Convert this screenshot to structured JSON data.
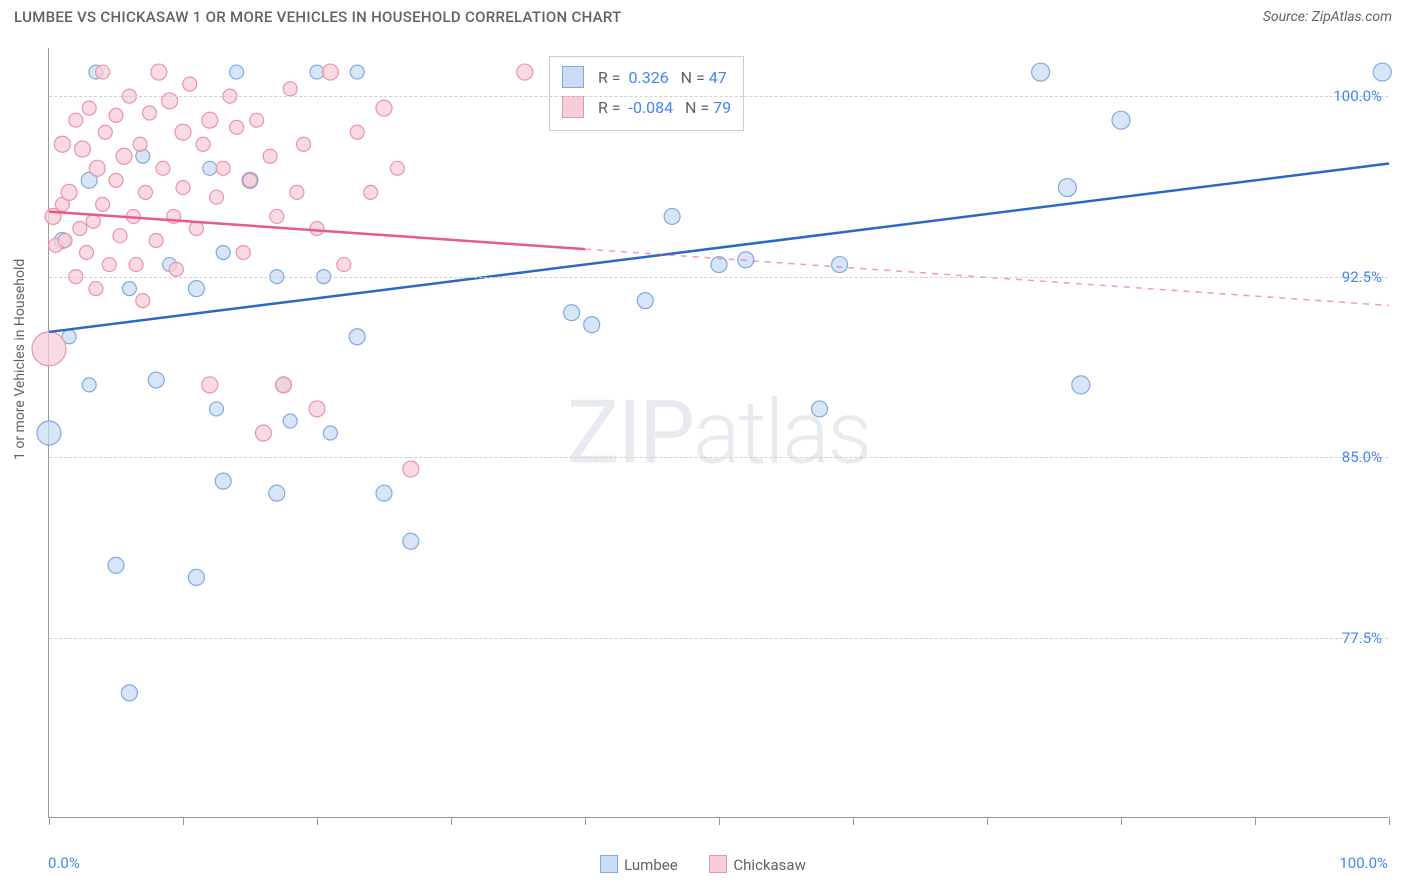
{
  "title": "LUMBEE VS CHICKASAW 1 OR MORE VEHICLES IN HOUSEHOLD CORRELATION CHART",
  "source": "Source: ZipAtlas.com",
  "y_axis_label": "1 or more Vehicles in Household",
  "watermark_bold": "ZIP",
  "watermark_light": "atlas",
  "chart": {
    "type": "scatter",
    "background_color": "#ffffff",
    "grid_color": "#d0d0d0",
    "border_color": "#999999",
    "text_color": "#5f6368",
    "value_color": "#4285f4",
    "xlim": [
      0,
      100
    ],
    "ylim": [
      70,
      102
    ],
    "x_ticks": [
      0,
      10,
      20,
      30,
      40,
      50,
      60,
      70,
      80,
      90,
      100
    ],
    "x_tick_labels_left": "0.0%",
    "x_tick_labels_right": "100.0%",
    "y_gridlines": [
      77.5,
      85.0,
      92.5,
      100.0
    ],
    "y_tick_labels": [
      "77.5%",
      "85.0%",
      "92.5%",
      "100.0%"
    ],
    "series": [
      {
        "name": "Lumbee",
        "fill": "#c9dcf4",
        "stroke": "#7faae3",
        "line_color": "#2a68c8",
        "line_solid_xmax": 100,
        "r_value": "0.326",
        "n_value": "47",
        "regression": {
          "x1": 0,
          "y1": 90.2,
          "x2": 100,
          "y2": 97.2
        },
        "points": [
          {
            "x": 0,
            "y": 86,
            "r": 12
          },
          {
            "x": 1,
            "y": 94,
            "r": 8
          },
          {
            "x": 1.5,
            "y": 90,
            "r": 7
          },
          {
            "x": 3,
            "y": 96.5,
            "r": 8
          },
          {
            "x": 3,
            "y": 88,
            "r": 7
          },
          {
            "x": 3.5,
            "y": 101,
            "r": 7
          },
          {
            "x": 5,
            "y": 80.5,
            "r": 8
          },
          {
            "x": 6,
            "y": 75.2,
            "r": 8
          },
          {
            "x": 6,
            "y": 92,
            "r": 7
          },
          {
            "x": 7,
            "y": 97.5,
            "r": 7
          },
          {
            "x": 8,
            "y": 88.2,
            "r": 8
          },
          {
            "x": 9,
            "y": 93,
            "r": 7
          },
          {
            "x": 11,
            "y": 80,
            "r": 8
          },
          {
            "x": 11,
            "y": 92,
            "r": 8
          },
          {
            "x": 12,
            "y": 97,
            "r": 7
          },
          {
            "x": 12.5,
            "y": 87,
            "r": 7
          },
          {
            "x": 13,
            "y": 84,
            "r": 8
          },
          {
            "x": 13,
            "y": 93.5,
            "r": 7
          },
          {
            "x": 14,
            "y": 101,
            "r": 7
          },
          {
            "x": 15,
            "y": 96.5,
            "r": 8
          },
          {
            "x": 17,
            "y": 83.5,
            "r": 8
          },
          {
            "x": 17,
            "y": 92.5,
            "r": 7
          },
          {
            "x": 17.5,
            "y": 88,
            "r": 7
          },
          {
            "x": 18,
            "y": 86.5,
            "r": 7
          },
          {
            "x": 20,
            "y": 101,
            "r": 7
          },
          {
            "x": 20.5,
            "y": 92.5,
            "r": 7
          },
          {
            "x": 21,
            "y": 86,
            "r": 7
          },
          {
            "x": 23,
            "y": 90,
            "r": 8
          },
          {
            "x": 23,
            "y": 101,
            "r": 7
          },
          {
            "x": 25,
            "y": 83.5,
            "r": 8
          },
          {
            "x": 27,
            "y": 81.5,
            "r": 8
          },
          {
            "x": 39,
            "y": 91,
            "r": 8
          },
          {
            "x": 40.5,
            "y": 90.5,
            "r": 8
          },
          {
            "x": 44.5,
            "y": 91.5,
            "r": 8
          },
          {
            "x": 46.5,
            "y": 95,
            "r": 8
          },
          {
            "x": 50,
            "y": 93,
            "r": 8
          },
          {
            "x": 52,
            "y": 93.2,
            "r": 8
          },
          {
            "x": 57.5,
            "y": 87,
            "r": 8
          },
          {
            "x": 59,
            "y": 93,
            "r": 8
          },
          {
            "x": 74,
            "y": 101,
            "r": 9
          },
          {
            "x": 76,
            "y": 96.2,
            "r": 9
          },
          {
            "x": 77,
            "y": 88,
            "r": 9
          },
          {
            "x": 80,
            "y": 99,
            "r": 9
          },
          {
            "x": 99.5,
            "y": 101,
            "r": 9
          }
        ]
      },
      {
        "name": "Chickasaw",
        "fill": "#f7cdd8",
        "stroke": "#ea94aa",
        "line_color": "#e85a87",
        "line_solid_xmax": 40,
        "r_value": "-0.084",
        "n_value": "79",
        "regression": {
          "x1": 0,
          "y1": 95.2,
          "x2": 100,
          "y2": 91.3
        },
        "points": [
          {
            "x": 0,
            "y": 89.5,
            "r": 17
          },
          {
            "x": 0.3,
            "y": 95,
            "r": 8
          },
          {
            "x": 0.5,
            "y": 93.8,
            "r": 7
          },
          {
            "x": 1,
            "y": 95.5,
            "r": 7
          },
          {
            "x": 1,
            "y": 98,
            "r": 8
          },
          {
            "x": 1.2,
            "y": 94,
            "r": 7
          },
          {
            "x": 1.5,
            "y": 96,
            "r": 8
          },
          {
            "x": 2,
            "y": 92.5,
            "r": 7
          },
          {
            "x": 2,
            "y": 99,
            "r": 7
          },
          {
            "x": 2.3,
            "y": 94.5,
            "r": 7
          },
          {
            "x": 2.5,
            "y": 97.8,
            "r": 8
          },
          {
            "x": 2.8,
            "y": 93.5,
            "r": 7
          },
          {
            "x": 3,
            "y": 99.5,
            "r": 7
          },
          {
            "x": 3.3,
            "y": 94.8,
            "r": 7
          },
          {
            "x": 3.5,
            "y": 92,
            "r": 7
          },
          {
            "x": 3.6,
            "y": 97,
            "r": 8
          },
          {
            "x": 4,
            "y": 101,
            "r": 7
          },
          {
            "x": 4,
            "y": 95.5,
            "r": 7
          },
          {
            "x": 4.2,
            "y": 98.5,
            "r": 7
          },
          {
            "x": 4.5,
            "y": 93,
            "r": 7
          },
          {
            "x": 5,
            "y": 96.5,
            "r": 7
          },
          {
            "x": 5,
            "y": 99.2,
            "r": 7
          },
          {
            "x": 5.3,
            "y": 94.2,
            "r": 7
          },
          {
            "x": 5.6,
            "y": 97.5,
            "r": 8
          },
          {
            "x": 6,
            "y": 100,
            "r": 7
          },
          {
            "x": 6.3,
            "y": 95,
            "r": 7
          },
          {
            "x": 6.5,
            "y": 93,
            "r": 7
          },
          {
            "x": 6.8,
            "y": 98,
            "r": 7
          },
          {
            "x": 7,
            "y": 91.5,
            "r": 7
          },
          {
            "x": 7.2,
            "y": 96,
            "r": 7
          },
          {
            "x": 7.5,
            "y": 99.3,
            "r": 7
          },
          {
            "x": 8,
            "y": 94,
            "r": 7
          },
          {
            "x": 8.2,
            "y": 101,
            "r": 8
          },
          {
            "x": 8.5,
            "y": 97,
            "r": 7
          },
          {
            "x": 9,
            "y": 99.8,
            "r": 8
          },
          {
            "x": 9.3,
            "y": 95,
            "r": 7
          },
          {
            "x": 9.5,
            "y": 92.8,
            "r": 7
          },
          {
            "x": 10,
            "y": 98.5,
            "r": 8
          },
          {
            "x": 10,
            "y": 96.2,
            "r": 7
          },
          {
            "x": 10.5,
            "y": 100.5,
            "r": 7
          },
          {
            "x": 11,
            "y": 94.5,
            "r": 7
          },
          {
            "x": 11.5,
            "y": 98,
            "r": 7
          },
          {
            "x": 12,
            "y": 99,
            "r": 8
          },
          {
            "x": 12,
            "y": 88,
            "r": 8
          },
          {
            "x": 12.5,
            "y": 95.8,
            "r": 7
          },
          {
            "x": 13,
            "y": 97,
            "r": 7
          },
          {
            "x": 13.5,
            "y": 100,
            "r": 7
          },
          {
            "x": 14,
            "y": 98.7,
            "r": 7
          },
          {
            "x": 14.5,
            "y": 93.5,
            "r": 7
          },
          {
            "x": 15,
            "y": 96.5,
            "r": 7
          },
          {
            "x": 15.5,
            "y": 99,
            "r": 7
          },
          {
            "x": 16,
            "y": 86,
            "r": 8
          },
          {
            "x": 16.5,
            "y": 97.5,
            "r": 7
          },
          {
            "x": 17,
            "y": 95,
            "r": 7
          },
          {
            "x": 17.5,
            "y": 88,
            "r": 8
          },
          {
            "x": 18,
            "y": 100.3,
            "r": 7
          },
          {
            "x": 18.5,
            "y": 96,
            "r": 7
          },
          {
            "x": 19,
            "y": 98,
            "r": 7
          },
          {
            "x": 20,
            "y": 87,
            "r": 8
          },
          {
            "x": 20,
            "y": 94.5,
            "r": 7
          },
          {
            "x": 21,
            "y": 101,
            "r": 8
          },
          {
            "x": 22,
            "y": 93,
            "r": 7
          },
          {
            "x": 23,
            "y": 98.5,
            "r": 7
          },
          {
            "x": 24,
            "y": 96,
            "r": 7
          },
          {
            "x": 25,
            "y": 99.5,
            "r": 8
          },
          {
            "x": 26,
            "y": 97,
            "r": 7
          },
          {
            "x": 27,
            "y": 84.5,
            "r": 8
          },
          {
            "x": 35.5,
            "y": 101,
            "r": 8
          }
        ]
      }
    ],
    "marker_opacity": 0.75,
    "legend_bottom": {
      "items": [
        {
          "label": "Lumbee",
          "fill": "#c9dcf4",
          "stroke": "#7faae3"
        },
        {
          "label": "Chickasaw",
          "fill": "#f7cdd8",
          "stroke": "#ea94aa"
        }
      ]
    }
  }
}
